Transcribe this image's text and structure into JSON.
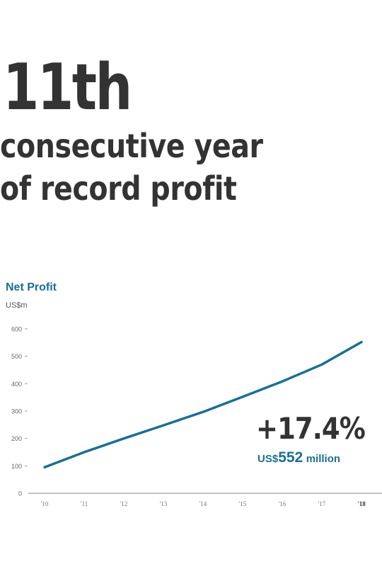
{
  "headline": {
    "rank": "11th",
    "line1": "consecutive year",
    "line2": "of record profit"
  },
  "stat": {
    "growth": "+17.4%",
    "currency": "US$",
    "amount": "552",
    "unit": "million"
  },
  "chart_data": {
    "type": "line",
    "title": "Net Profit",
    "unit_label": "US$m",
    "xlabel": "",
    "ylabel": "US$m",
    "categories": [
      "'10",
      "'11",
      "'12",
      "'13",
      "'14",
      "'15",
      "'16",
      "'17",
      "'18"
    ],
    "highlight_category": "'18",
    "ylim": [
      0,
      600
    ],
    "yticks": [
      0,
      100,
      200,
      300,
      400,
      500,
      600
    ],
    "series": [
      {
        "values": [
          95,
          150,
          200,
          248,
          297,
          352,
          408,
          470,
          552
        ]
      }
    ],
    "line_color": "#1a6f97",
    "grid": false
  }
}
